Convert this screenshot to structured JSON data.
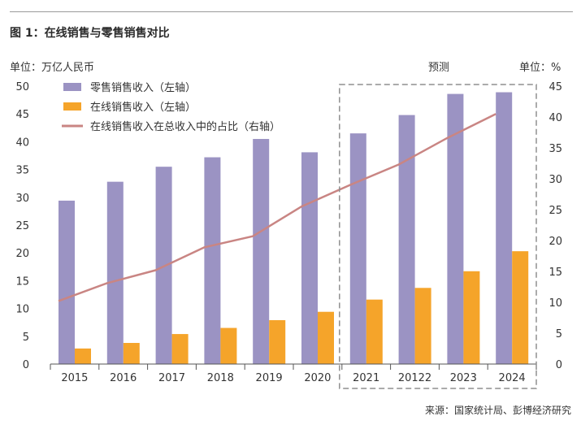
{
  "title": "图 1：在线销售与零售销售对比",
  "source": "来源：国家统计局、彭博经济研究",
  "left_unit": "单位：万亿人民币",
  "right_unit": "单位：%",
  "forecast_label": "预测",
  "colors": {
    "retail": "#9b93c3",
    "online": "#f5a42a",
    "share": "#c98583",
    "forecast_box": "#8f8f8f"
  },
  "chart_data": {
    "type": "bar+line",
    "categories": [
      "2015",
      "2016",
      "2017",
      "2018",
      "2019",
      "2020",
      "2021",
      "20122",
      "2023",
      "2024"
    ],
    "series": [
      {
        "name": "零售销售收入（左轴）",
        "kind": "bar",
        "axis": "left",
        "values": [
          29.4,
          32.8,
          35.5,
          37.2,
          40.5,
          38.1,
          41.5,
          44.8,
          48.6,
          48.9
        ]
      },
      {
        "name": "在线销售收入（左轴）",
        "kind": "bar",
        "axis": "left",
        "values": [
          2.8,
          3.8,
          5.4,
          6.5,
          7.9,
          9.4,
          11.6,
          13.7,
          16.7,
          20.3
        ]
      },
      {
        "name": "在线销售收入在总收入中的占比（右轴）",
        "kind": "line",
        "axis": "right",
        "values": [
          10.2,
          13.1,
          15.2,
          18.9,
          20.7,
          25.5,
          29.0,
          32.3,
          36.6,
          40.5
        ]
      }
    ],
    "left_axis": {
      "min": 0,
      "max": 50,
      "ticks": [
        0,
        5,
        10,
        15,
        20,
        25,
        30,
        35,
        40,
        45,
        50
      ]
    },
    "right_axis": {
      "min": 0,
      "max": 45,
      "ticks": [
        0,
        5,
        10,
        15,
        20,
        25,
        30,
        35,
        40,
        45
      ]
    },
    "forecast_start_index": 6
  }
}
